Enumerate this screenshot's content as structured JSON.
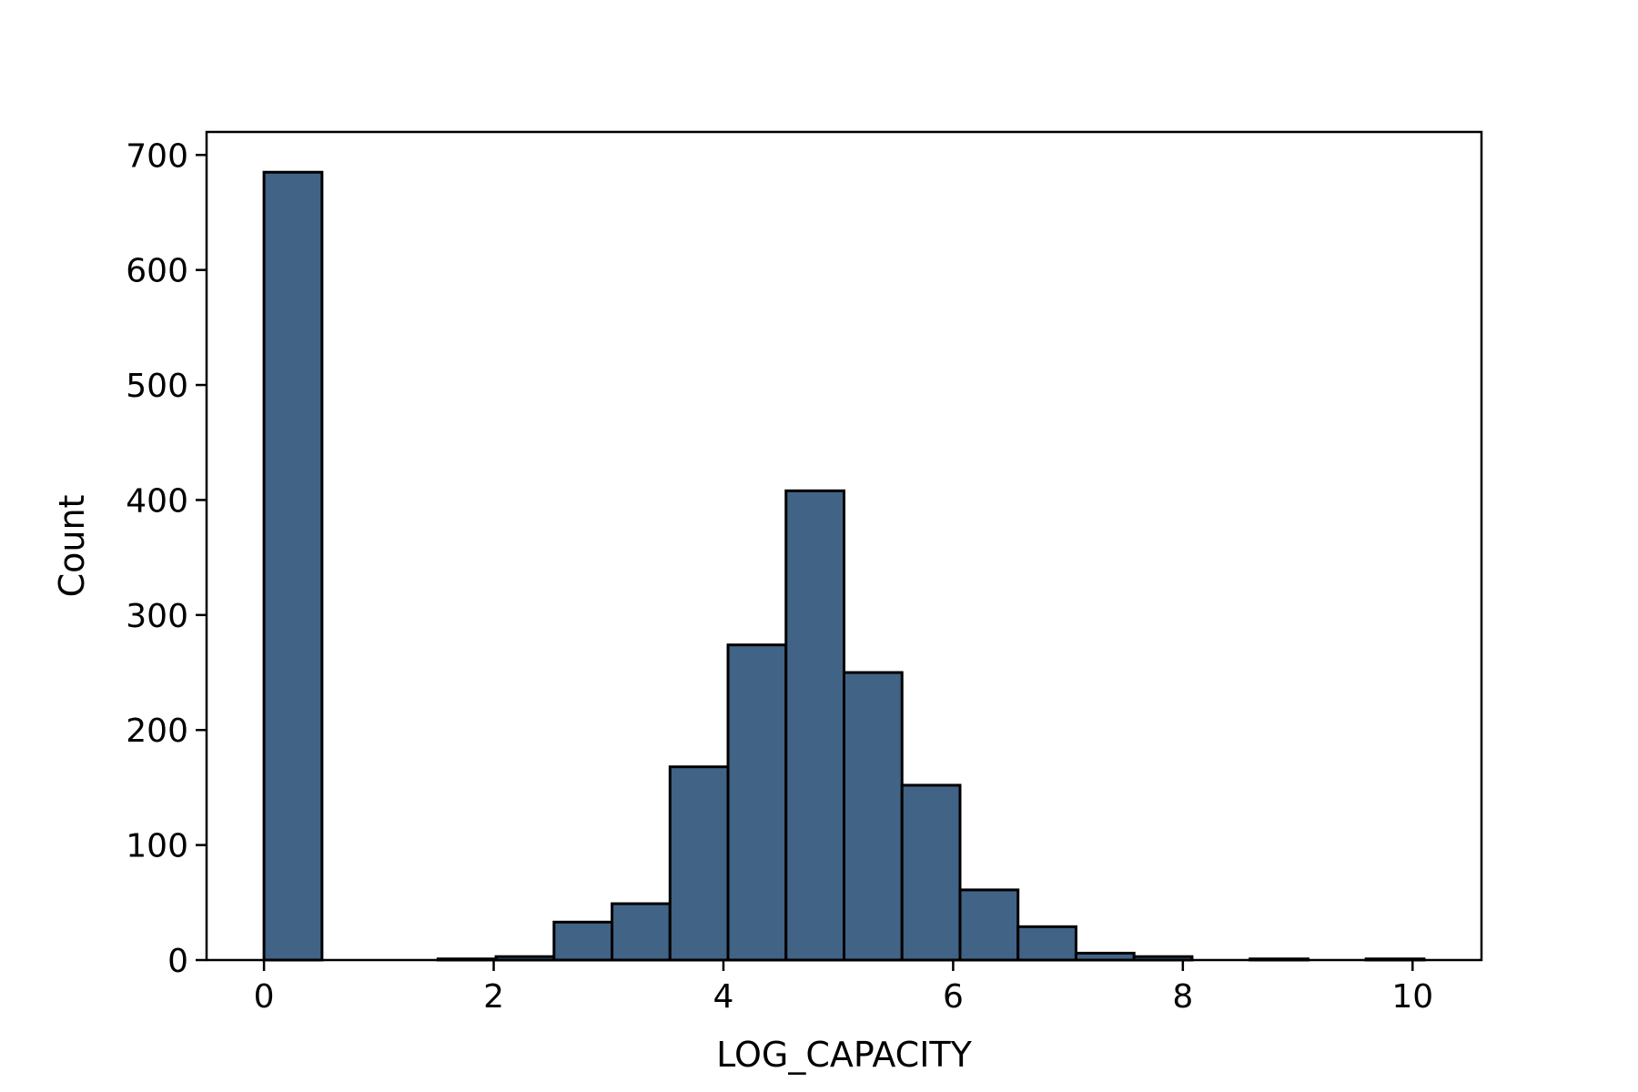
{
  "chart_data": {
    "type": "bar",
    "subtype": "histogram",
    "title": "",
    "xlabel": "LOG_CAPACITY",
    "ylabel": "Count",
    "bin_edges": [
      0,
      0.505,
      1.01,
      1.515,
      2.02,
      2.525,
      3.03,
      3.535,
      4.04,
      4.545,
      5.05,
      5.555,
      6.06,
      6.565,
      7.07,
      7.575,
      8.08,
      8.585,
      9.09,
      9.595,
      10.1
    ],
    "values": [
      685,
      0,
      0,
      1,
      3,
      33,
      49,
      168,
      274,
      408,
      250,
      152,
      61,
      29,
      6,
      3,
      0,
      1,
      0,
      1
    ],
    "xlim": [
      -0.5,
      10.6
    ],
    "ylim": [
      0,
      720
    ],
    "xticks": [
      0,
      2,
      4,
      6,
      8,
      10
    ],
    "xtick_labels": [
      "0",
      "2",
      "4",
      "6",
      "8",
      "10"
    ],
    "yticks": [
      0,
      100,
      200,
      300,
      400,
      500,
      600,
      700
    ],
    "ytick_labels": [
      "0",
      "100",
      "200",
      "300",
      "400",
      "500",
      "600",
      "700"
    ],
    "grid": false,
    "bar_color": "#416385",
    "edge_color": "#000000"
  }
}
